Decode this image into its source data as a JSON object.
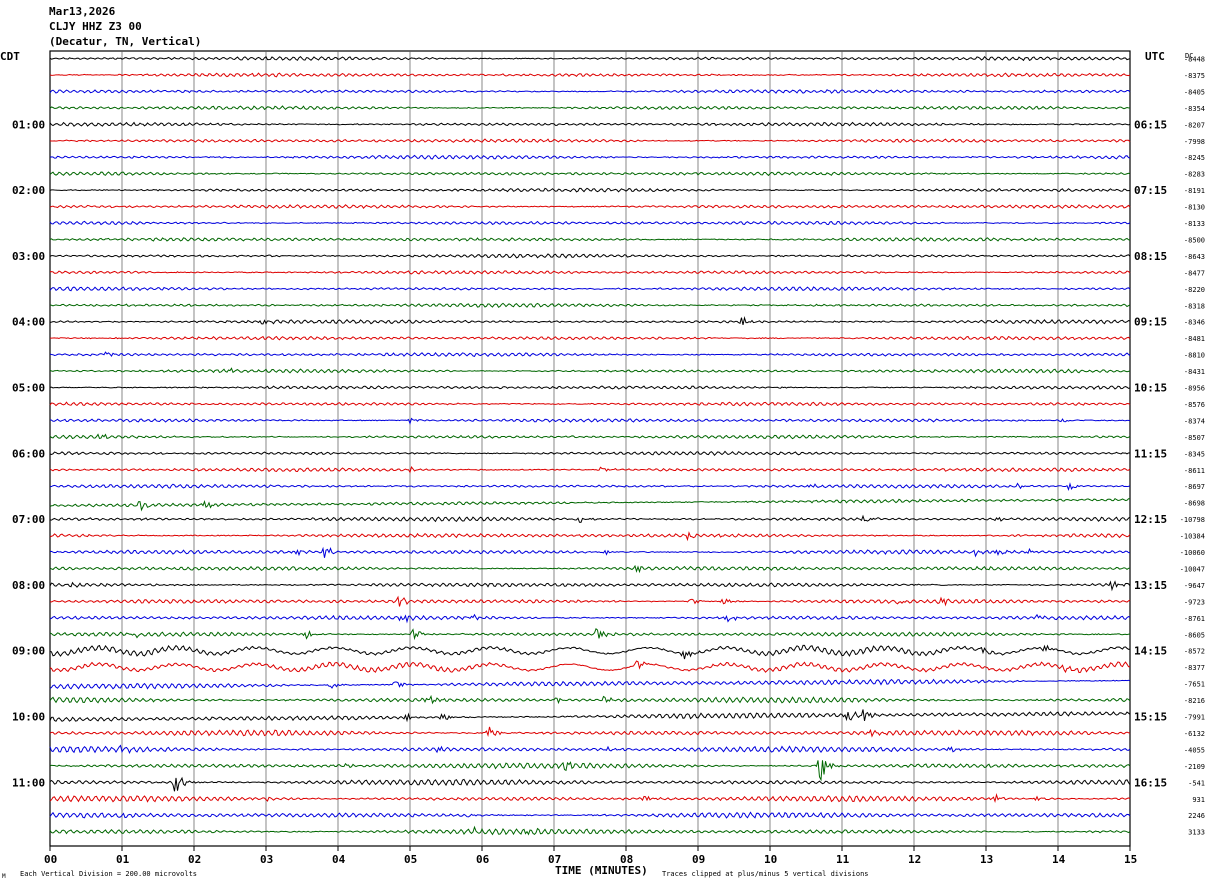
{
  "header": {
    "date": "Mar13,2026",
    "station": "CLJY HHZ Z3 00",
    "location": "(Decatur, TN, Vertical)"
  },
  "left_tz": "CDT",
  "right_tz": "UTC",
  "dc_label": "DC",
  "footer": {
    "scale_note": "Each Vertical Division =  200.00 microvolts",
    "clip_note": "Traces clipped at plus/minus 5 vertical divisions",
    "corner_mark": "M"
  },
  "colors": {
    "black": "#000000",
    "red": "#dd0000",
    "blue": "#0000dd",
    "green": "#006600",
    "grid": "#555555"
  },
  "chart_data": {
    "type": "line",
    "xlabel": "TIME (MINUTES)",
    "xlim": [
      0,
      15
    ],
    "x_ticks": [
      "00",
      "01",
      "02",
      "03",
      "04",
      "05",
      "06",
      "07",
      "08",
      "09",
      "10",
      "11",
      "12",
      "13",
      "14",
      "15"
    ],
    "trace_color_cycle": [
      "black",
      "red",
      "blue",
      "green"
    ],
    "left_hour_labels": [
      "01:00",
      "02:00",
      "03:00",
      "04:00",
      "05:00",
      "06:00",
      "07:00",
      "08:00",
      "09:00",
      "10:00",
      "11:00"
    ],
    "right_hour_labels": [
      "06:15",
      "07:15",
      "08:15",
      "09:15",
      "10:15",
      "11:15",
      "12:15",
      "13:15",
      "14:15",
      "15:15",
      "16:15"
    ],
    "dc_offsets": [
      "-8448",
      "-8375",
      "-8405",
      "-8354",
      "-8207",
      "-7998",
      "-8245",
      "-8283",
      "-8191",
      "-8130",
      "-8133",
      "-8500",
      "-8643",
      "-8477",
      "-8220",
      "-8318",
      "-8346",
      "-8481",
      "-8810",
      "-8431",
      "-8956",
      "-8576",
      "-8374",
      "-8507",
      "-8345",
      "-8611",
      "-8697",
      "-8698",
      "-10798",
      "-10384",
      "-10060",
      "-10047",
      "-9647",
      "-9723",
      "-8761",
      "-8605",
      "-8572",
      "-8377",
      "-7651",
      "-8216",
      "-7991",
      "-6132",
      "-4055",
      "-2109",
      "-541",
      "931",
      "2246",
      "3133"
    ],
    "events": [
      {
        "row": 16,
        "minute": 2.95,
        "amp": 0.6
      },
      {
        "row": 16,
        "minute": 9.6,
        "amp": 0.8
      },
      {
        "row": 18,
        "minute": 0.75,
        "amp": 0.6
      },
      {
        "row": 19,
        "minute": 2.45,
        "amp": 0.5
      },
      {
        "row": 22,
        "minute": 5.0,
        "amp": 0.5
      },
      {
        "row": 22,
        "minute": 14.05,
        "amp": 0.4
      },
      {
        "row": 23,
        "minute": 0.7,
        "amp": 0.4
      },
      {
        "row": 25,
        "minute": 5.0,
        "amp": 0.4
      },
      {
        "row": 25,
        "minute": 7.65,
        "amp": 0.5
      },
      {
        "row": 26,
        "minute": 10.55,
        "amp": 0.4
      },
      {
        "row": 26,
        "minute": 13.45,
        "amp": 0.4
      },
      {
        "row": 26,
        "minute": 14.15,
        "amp": 0.6
      },
      {
        "row": 27,
        "minute": 1.25,
        "amp": 0.8
      },
      {
        "row": 27,
        "minute": 2.15,
        "amp": 0.7
      },
      {
        "row": 28,
        "minute": 7.35,
        "amp": 0.6
      },
      {
        "row": 28,
        "minute": 11.3,
        "amp": 0.5
      },
      {
        "row": 28,
        "minute": 13.15,
        "amp": 0.4
      },
      {
        "row": 29,
        "minute": 8.85,
        "amp": 0.6
      },
      {
        "row": 30,
        "minute": 3.4,
        "amp": 0.6
      },
      {
        "row": 30,
        "minute": 3.8,
        "amp": 1.2
      },
      {
        "row": 30,
        "minute": 7.65,
        "amp": 0.7
      },
      {
        "row": 30,
        "minute": 12.85,
        "amp": 0.6
      },
      {
        "row": 30,
        "minute": 13.15,
        "amp": 0.6
      },
      {
        "row": 30,
        "minute": 13.6,
        "amp": 0.5
      },
      {
        "row": 31,
        "minute": 8.15,
        "amp": 0.6
      },
      {
        "row": 32,
        "minute": 0.25,
        "amp": 0.5
      },
      {
        "row": 32,
        "minute": 6.1,
        "amp": 0.4
      },
      {
        "row": 32,
        "minute": 14.75,
        "amp": 0.9
      },
      {
        "row": 33,
        "minute": 4.85,
        "amp": 0.9
      },
      {
        "row": 33,
        "minute": 8.9,
        "amp": 0.7
      },
      {
        "row": 33,
        "minute": 9.35,
        "amp": 0.6
      },
      {
        "row": 33,
        "minute": 11.8,
        "amp": 0.5
      },
      {
        "row": 33,
        "minute": 12.4,
        "amp": 0.5
      },
      {
        "row": 34,
        "minute": 4.9,
        "amp": 0.9
      },
      {
        "row": 34,
        "minute": 5.85,
        "amp": 0.7
      },
      {
        "row": 34,
        "minute": 9.4,
        "amp": 0.7
      },
      {
        "row": 34,
        "minute": 13.7,
        "amp": 0.5
      },
      {
        "row": 35,
        "minute": 1.15,
        "amp": 0.6
      },
      {
        "row": 35,
        "minute": 3.55,
        "amp": 0.8
      },
      {
        "row": 35,
        "minute": 5.05,
        "amp": 1.0
      },
      {
        "row": 35,
        "minute": 7.6,
        "amp": 1.0
      },
      {
        "row": 36,
        "minute": 8.8,
        "amp": 1.1
      },
      {
        "row": 36,
        "minute": 12.95,
        "amp": 0.8
      },
      {
        "row": 36,
        "minute": 13.8,
        "amp": 0.6
      },
      {
        "row": 37,
        "minute": 8.15,
        "amp": 0.9
      },
      {
        "row": 37,
        "minute": 14.1,
        "amp": 0.6
      },
      {
        "row": 38,
        "minute": 3.9,
        "amp": 0.6
      },
      {
        "row": 38,
        "minute": 4.8,
        "amp": 0.8
      },
      {
        "row": 39,
        "minute": 5.25,
        "amp": 1.2
      },
      {
        "row": 39,
        "minute": 7.0,
        "amp": 0.6
      },
      {
        "row": 39,
        "minute": 7.7,
        "amp": 0.5
      },
      {
        "row": 40,
        "minute": 4.95,
        "amp": 0.7
      },
      {
        "row": 40,
        "minute": 5.45,
        "amp": 0.6
      },
      {
        "row": 40,
        "minute": 11.05,
        "amp": 1.4
      },
      {
        "row": 40,
        "minute": 11.3,
        "amp": 1.0
      },
      {
        "row": 41,
        "minute": 6.1,
        "amp": 1.4
      },
      {
        "row": 41,
        "minute": 11.4,
        "amp": 0.6
      },
      {
        "row": 42,
        "minute": 1.0,
        "amp": 0.5
      },
      {
        "row": 42,
        "minute": 5.4,
        "amp": 0.5
      },
      {
        "row": 42,
        "minute": 7.7,
        "amp": 0.5
      },
      {
        "row": 42,
        "minute": 12.5,
        "amp": 0.4
      },
      {
        "row": 43,
        "minute": 4.1,
        "amp": 0.5
      },
      {
        "row": 43,
        "minute": 7.15,
        "amp": 0.6
      },
      {
        "row": 43,
        "minute": 10.7,
        "amp": 2.8
      },
      {
        "row": 44,
        "minute": 1.75,
        "amp": 2.4
      },
      {
        "row": 45,
        "minute": 3.0,
        "amp": 0.4
      },
      {
        "row": 45,
        "minute": 8.25,
        "amp": 0.6
      },
      {
        "row": 45,
        "minute": 13.1,
        "amp": 0.9
      },
      {
        "row": 45,
        "minute": 13.7,
        "amp": 0.4
      },
      {
        "row": 46,
        "minute": 1.0,
        "amp": 0.4
      },
      {
        "row": 46,
        "minute": 5.8,
        "amp": 0.4
      },
      {
        "row": 47,
        "minute": 5.9,
        "amp": 0.4
      },
      {
        "row": 47,
        "minute": 6.6,
        "amp": 0.6
      }
    ]
  }
}
